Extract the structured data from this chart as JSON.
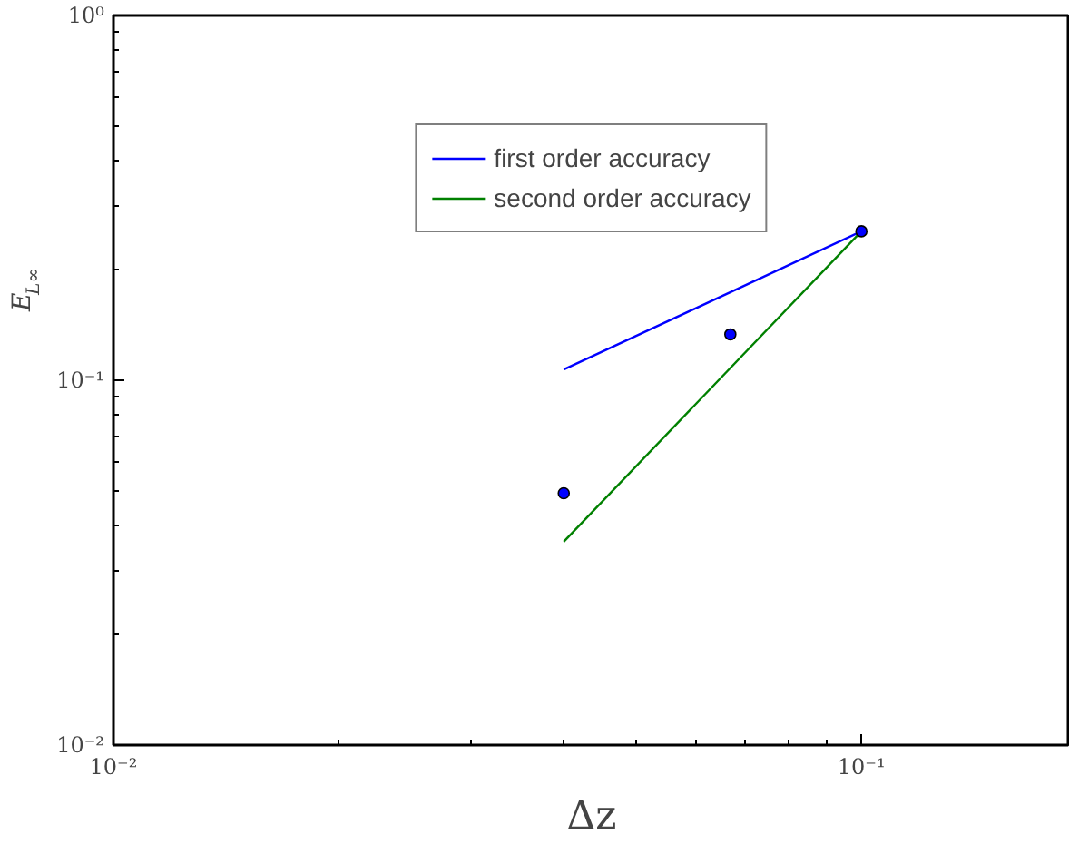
{
  "chart_data": {
    "type": "line",
    "xlabel": "Δz",
    "ylabel": "E$_{L∞}$",
    "log": "xy",
    "xlim": [
      0.01,
      0.19
    ],
    "ylim": [
      0.01,
      1
    ],
    "xticks": [
      {
        "value": 0.01,
        "label": "10⁻²"
      },
      {
        "value": 0.1,
        "label": "10⁻¹"
      }
    ],
    "yticks": [
      {
        "value": 0.01,
        "label": "10⁻²"
      },
      {
        "value": 0.1,
        "label": "10⁻¹"
      },
      {
        "value": 1,
        "label": "10⁰"
      }
    ],
    "grid": false,
    "legend": "top",
    "series": [
      {
        "name": "first order accuracy",
        "type": "line",
        "color": "#0000ff",
        "x": [
          0.04,
          0.1
        ],
        "values": [
          0.107,
          0.256
        ]
      },
      {
        "name": "second order accuracy",
        "type": "line",
        "color": "#008000",
        "x": [
          0.04,
          0.1
        ],
        "values": [
          0.0361,
          0.256
        ]
      },
      {
        "type": "scatter",
        "color": "#0000ff",
        "marker": "circle",
        "x": [
          0.04,
          0.0668,
          0.1
        ],
        "values": [
          0.049,
          0.1336,
          0.256
        ]
      }
    ]
  }
}
